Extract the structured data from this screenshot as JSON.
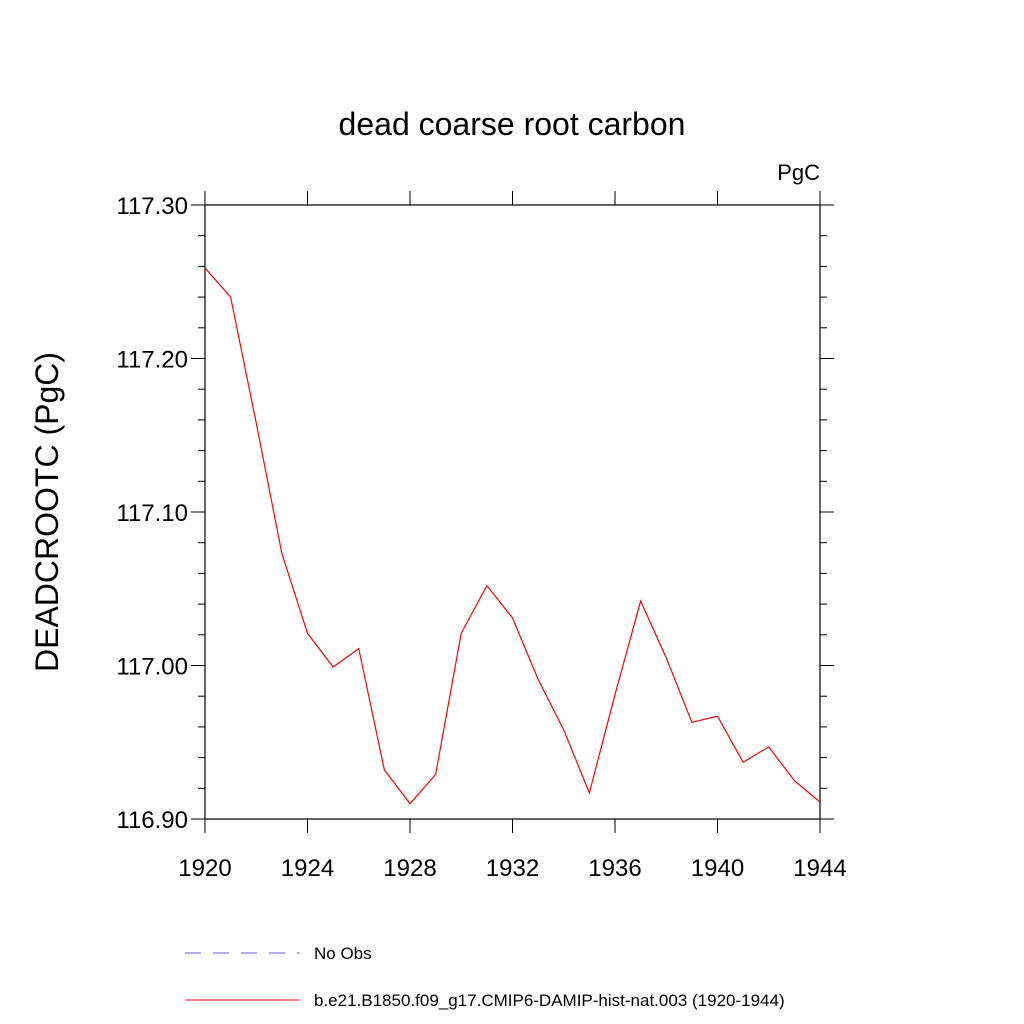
{
  "chart_data": {
    "type": "line",
    "title": "dead coarse root carbon",
    "units_label": "PgC",
    "xlabel": "",
    "ylabel": "DEADCROOTC  (PgC)",
    "xlim": [
      1920,
      1944
    ],
    "ylim": [
      116.9,
      117.3
    ],
    "x_ticks": [
      1920,
      1924,
      1928,
      1932,
      1936,
      1940,
      1944
    ],
    "x_tick_labels": [
      "1920",
      "1924",
      "1928",
      "1932",
      "1936",
      "1940",
      "1944"
    ],
    "y_ticks": [
      116.9,
      117.0,
      117.1,
      117.2,
      117.3
    ],
    "y_tick_labels": [
      "116.90",
      "117.00",
      "117.10",
      "117.20",
      "117.30"
    ],
    "grid": false,
    "legend_position": "bottom",
    "series": [
      {
        "name": "No Obs",
        "color": "#6a5acd",
        "dash": "dashed",
        "x": [],
        "values": []
      },
      {
        "name": "b.e21.B1850.f09_g17.CMIP6-DAMIP-hist-nat.003 (1920-1944)",
        "color": "#ff0000",
        "dash": "solid",
        "x": [
          1920,
          1921,
          1922,
          1923,
          1924,
          1925,
          1926,
          1927,
          1928,
          1929,
          1930,
          1931,
          1932,
          1933,
          1934,
          1935,
          1936,
          1937,
          1938,
          1939,
          1940,
          1941,
          1942,
          1943,
          1944
        ],
        "values": [
          117.259,
          117.24,
          117.158,
          117.073,
          117.021,
          116.999,
          117.011,
          116.932,
          116.91,
          116.929,
          117.021,
          117.052,
          117.031,
          116.991,
          116.958,
          116.917,
          116.981,
          117.042,
          117.005,
          116.963,
          116.967,
          116.937,
          116.947,
          116.925,
          116.911
        ]
      }
    ]
  }
}
